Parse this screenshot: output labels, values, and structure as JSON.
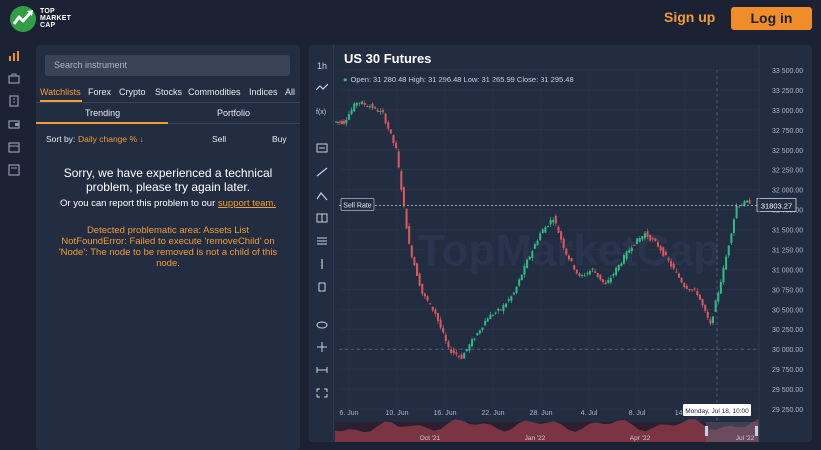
{
  "brand": {
    "line1": "TOP",
    "line2": "MARKET",
    "line3": "CAP"
  },
  "header": {
    "signup_label": "Sign up",
    "login_label": "Log in"
  },
  "rail": {
    "icons": [
      "chart-icon",
      "briefcase-icon",
      "building-icon",
      "wallet-icon",
      "calendar-icon",
      "news-icon"
    ]
  },
  "panel": {
    "search_placeholder": "Search instrument",
    "tabs": [
      "Watchlists",
      "Forex",
      "Crypto",
      "Stocks",
      "Commodities",
      "Indices",
      "All"
    ],
    "subtabs": [
      "Trending",
      "Portfolio"
    ],
    "sort_by_label": "Sort by:",
    "sort_value": "Daily change %",
    "sort_arrow": "↓",
    "col_sell": "Sell",
    "col_buy": "Buy",
    "error_title": "Sorry, we have experienced a technical problem, please try again later.",
    "report_prefix": "Or you can report this problem to our",
    "report_link": "support team.",
    "detected_label": "Detected problematic area:",
    "detected_area": "Assets List",
    "error_message": "NotFoundError: Failed to execute 'removeChild' on 'Node': The node to be removed is not a child of this node."
  },
  "chart": {
    "title": "US 30 Futures",
    "interval": "1h",
    "ohlc": "Open: 31 280.48 High: 31 296.48 Low: 31 265.99 Close: 31 295.48",
    "watermark": "TopMarketCap",
    "sell_rate_label": "Sell Rate",
    "sell_rate_value": "31803.27",
    "crosshair_label": "Monday, Jul 18, 10:00",
    "up_color": "#2ebd85",
    "down_color": "#e0585b",
    "tools": [
      "crosshair-icon",
      "trend-line-icon",
      "path-icon",
      "rectangle-icon",
      "fibonacci-icon",
      "brush-icon",
      "text-icon",
      "measure-icon",
      "hide-icon",
      "magnet-icon",
      "range-icon",
      "fullscreen-icon"
    ],
    "y_ticks": [
      "33 500.00",
      "33 250.00",
      "33 000.00",
      "32 750.00",
      "32 500.00",
      "32 250.00",
      "32 000.00",
      "31 750.00",
      "31 500.00",
      "31 250.00",
      "31 000.00",
      "30 750.00",
      "30 500.00",
      "30 250.00",
      "30 000.00",
      "29 750.00",
      "29 500.00",
      "29 250.00"
    ],
    "x_ticks": [
      "6. Jun",
      "10. Jun",
      "16. Jun",
      "22. Jun",
      "28. Jun",
      "4. Jul",
      "8. Jul",
      "14. Jul"
    ],
    "nav_ticks": [
      "Oct '21",
      "Jan '22",
      "Apr '22",
      "Jul '22"
    ]
  },
  "chart_data": {
    "type": "line",
    "title": "US 30 Futures",
    "xlabel": "",
    "ylabel": "",
    "ylim": [
      29250,
      33500
    ],
    "x": [
      "6. Jun",
      "7. Jun",
      "8. Jun",
      "9. Jun",
      "10. Jun",
      "13. Jun",
      "14. Jun",
      "15. Jun",
      "16. Jun",
      "17. Jun",
      "20. Jun",
      "21. Jun",
      "22. Jun",
      "23. Jun",
      "24. Jun",
      "27. Jun",
      "28. Jun",
      "29. Jun",
      "30. Jun",
      "1. Jul",
      "4. Jul",
      "5. Jul",
      "6. Jul",
      "7. Jul",
      "8. Jul",
      "11. Jul",
      "12. Jul",
      "13. Jul",
      "14. Jul",
      "15. Jul",
      "18. Jul",
      "19. Jul"
    ],
    "series": [
      {
        "values": [
          32850,
          33100,
          33050,
          32950,
          32500,
          31300,
          30700,
          30450,
          30000,
          29900,
          30150,
          30400,
          30500,
          30700,
          31100,
          31450,
          31650,
          31200,
          30900,
          31000,
          30800,
          31050,
          31300,
          31450,
          31300,
          31050,
          30800,
          30700,
          30300,
          31000,
          31800,
          31850
        ]
      }
    ],
    "grid": true
  }
}
